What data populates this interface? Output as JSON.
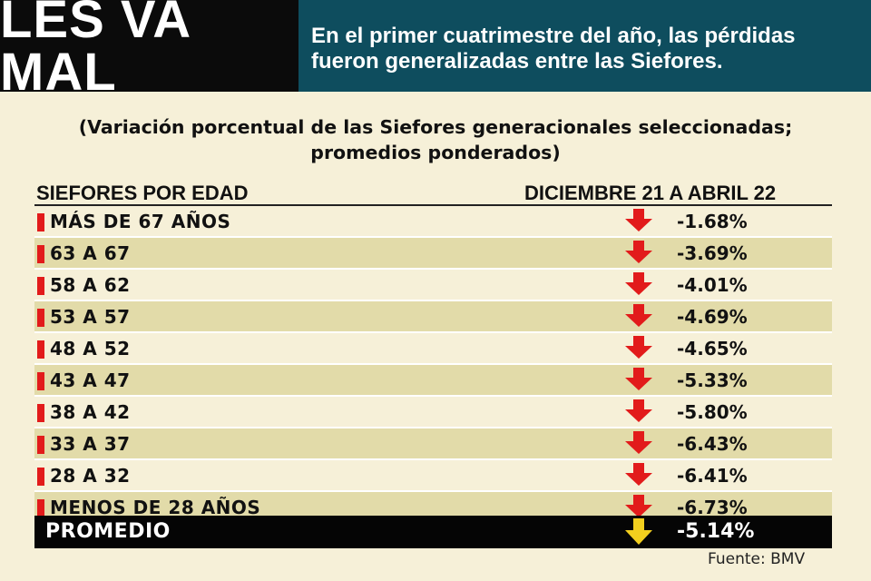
{
  "header": {
    "title": "LES VA MAL",
    "deck_line1": "En el primer cuatrimestre del año, las pérdidas",
    "deck_line2": "fueron generalizadas entre las Siefores."
  },
  "subtitle": {
    "line1": "(Variación porcentual de las Siefores generacionales seleccionadas;",
    "line2": "promedios ponderados)"
  },
  "columns": {
    "left": "SIEFORES POR EDAD",
    "right": "DICIEMBRE 21 A ABRIL 22"
  },
  "colors": {
    "title_bg": "#0b0b0b",
    "deck_bg": "#0e4d5e",
    "page_bg": "#f6f0d8",
    "row_shade": "#e2dba9",
    "down_arrow": "#e21b1b",
    "average_arrow": "#f2cf1e"
  },
  "chart_data": {
    "type": "table",
    "categories": [
      "MÁS DE 67 AÑOS",
      "63 A 67",
      "58 A 62",
      "53 A 57",
      "48 A 52",
      "43 A 47",
      "38 A 42",
      "33 A 37",
      "28 A 32",
      "MENOS DE 28 AÑOS"
    ],
    "values": [
      -1.68,
      -3.69,
      -4.01,
      -4.69,
      -4.65,
      -5.33,
      -5.8,
      -6.43,
      -6.41,
      -6.73
    ],
    "value_labels": [
      "-1.68%",
      "-3.69%",
      "-4.01%",
      "-4.69%",
      "-4.65%",
      "-5.33%",
      "-5.80%",
      "-6.43%",
      "-6.41%",
      "-6.73%"
    ],
    "indicator_icon": "down-arrow-icon",
    "average": {
      "label": "PROMEDIO",
      "value": -5.14,
      "value_label": "-5.14%"
    }
  },
  "footer": {
    "source": "Fuente: BMV"
  }
}
